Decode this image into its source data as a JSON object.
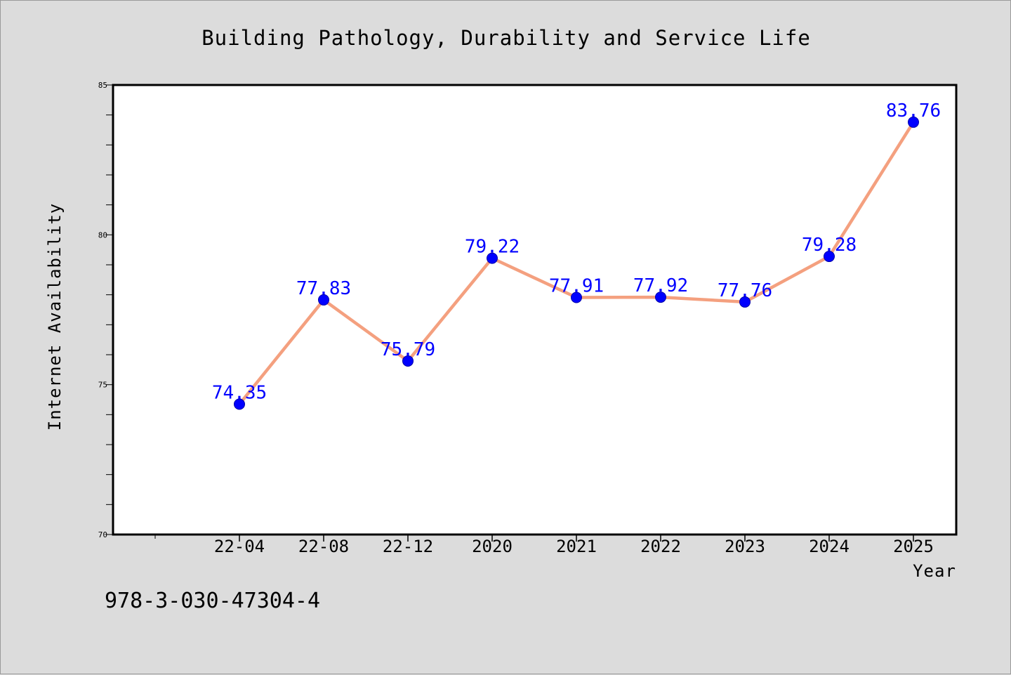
{
  "chart_data": {
    "type": "line",
    "title": "Building Pathology, Durability and Service Life",
    "xlabel": "Year",
    "ylabel": "Internet Availability",
    "categories": [
      "22-04",
      "22-08",
      "22-12",
      "2020",
      "2021",
      "2022",
      "2023",
      "2024",
      "2025"
    ],
    "series": [
      {
        "values": [
          74.35,
          77.83,
          75.79,
          79.22,
          77.91,
          77.92,
          77.76,
          79.28,
          83.76
        ]
      }
    ],
    "data_labels": [
      "74.35",
      "77.83",
      "75.79",
      "79.22",
      "77.91",
      "77.92",
      "77.76",
      "79.28",
      "83.76"
    ],
    "ylim": [
      70,
      85
    ],
    "y_major_ticks": [
      "70",
      "75",
      "80",
      "85"
    ],
    "grid": false,
    "line_color": "#f4a07f",
    "marker_color": "#0000ff",
    "label_color": "#0000ff",
    "plot_background": "#ffffff",
    "figure_background": "#dcdcdc"
  },
  "footer": {
    "isbn": "978-3-030-47304-4"
  }
}
